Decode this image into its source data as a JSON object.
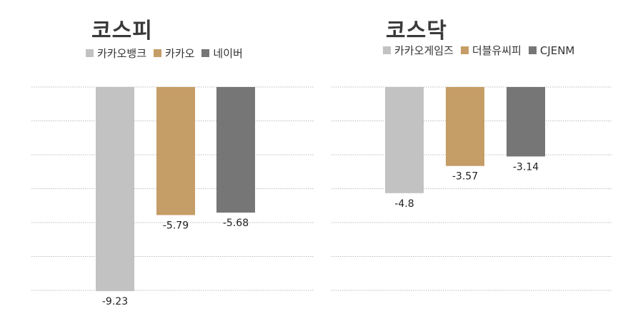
{
  "chart_data": [
    {
      "type": "bar",
      "title": "코스피",
      "categories": [
        "카카오뱅크",
        "카카오",
        "네이버"
      ],
      "values": [
        -9.23,
        -5.79,
        -5.68
      ],
      "colors": [
        "#c2c2c2",
        "#c59d66",
        "#767676"
      ],
      "ylim": [
        -9.23,
        0
      ],
      "grid": true,
      "legend_position": "top"
    },
    {
      "type": "bar",
      "title": "코스닥",
      "categories": [
        "카카오게임즈",
        "더블유씨피",
        "CJENM"
      ],
      "values": [
        -4.8,
        -3.57,
        -3.14
      ],
      "colors": [
        "#c2c2c2",
        "#c59d66",
        "#767676"
      ],
      "ylim": [
        -9.23,
        0
      ],
      "grid": true,
      "legend_position": "top"
    }
  ]
}
